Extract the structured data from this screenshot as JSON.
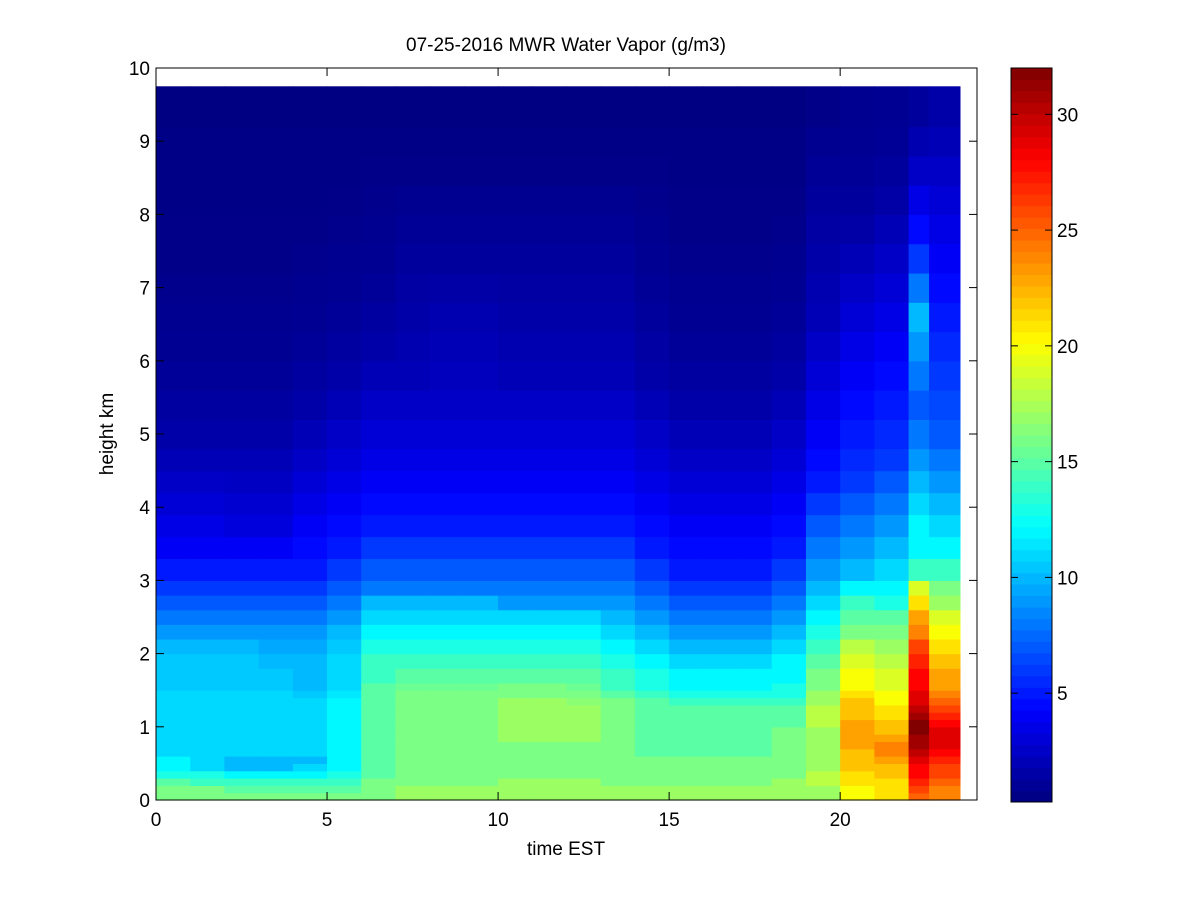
{
  "chart_data": {
    "type": "heatmap",
    "title": "07-25-2016 MWR Water Vapor (g/m3)",
    "xlabel": "time EST",
    "ylabel": "height km",
    "xlim": [
      0,
      24
    ],
    "ylim": [
      0,
      10
    ],
    "x_ticks": [
      0,
      5,
      10,
      15,
      20
    ],
    "y_ticks": [
      0,
      1,
      2,
      3,
      4,
      5,
      6,
      7,
      8,
      9,
      10
    ],
    "colorbar": {
      "colormap": "jet",
      "range": [
        0.3,
        32
      ],
      "ticks": [
        5,
        10,
        15,
        20,
        25,
        30
      ]
    },
    "time_hours": [
      0.5,
      1.5,
      2.5,
      3.5,
      4.5,
      5.5,
      6.5,
      7.5,
      8.5,
      9.5,
      10.5,
      11.5,
      12.5,
      13.5,
      14.5,
      15.5,
      16.5,
      17.5,
      18.5,
      19.5,
      20.5,
      21.5,
      22.5,
      23.0
    ],
    "height_km": [
      0,
      0.1,
      0.2,
      0.3,
      0.4,
      0.5,
      0.6,
      0.7,
      0.8,
      0.9,
      1.0,
      1.1,
      1.2,
      1.3,
      1.4,
      1.5,
      1.6,
      1.8,
      2.0,
      2.2,
      2.4,
      2.6,
      2.8,
      3.0,
      3.3,
      3.6,
      3.9,
      4.2,
      4.5,
      4.8,
      5.2,
      5.6,
      6.0,
      6.4,
      6.8,
      7.2,
      7.6,
      8.0,
      8.4,
      8.8,
      9.2,
      9.75
    ],
    "value_profiles": [
      {
        "time_hours": 0.5,
        "values_g_m3": [
          16,
          16,
          15,
          13,
          12,
          12,
          11,
          11,
          11,
          11,
          11,
          11,
          11,
          11,
          11,
          10.5,
          10.5,
          10.5,
          10,
          9,
          8,
          7,
          6,
          5,
          4,
          3.5,
          3,
          2.5,
          2,
          1.6,
          1.3,
          1.1,
          0.9,
          0.8,
          0.7,
          0.6,
          0.6,
          0.5,
          0.5,
          0.5,
          0.4,
          0.4
        ]
      },
      {
        "time_hours": 1.5,
        "values_g_m3": [
          16,
          16,
          14,
          13,
          11,
          11,
          11,
          11,
          11,
          11,
          11,
          11,
          11,
          11,
          11,
          10.5,
          10.5,
          10.5,
          10,
          9,
          8,
          7,
          6,
          5,
          4,
          3.5,
          3,
          2.5,
          2,
          1.6,
          1.3,
          1.1,
          0.9,
          0.8,
          0.7,
          0.6,
          0.6,
          0.5,
          0.5,
          0.5,
          0.4,
          0.4
        ]
      },
      {
        "time_hours": 2.5,
        "values_g_m3": [
          16,
          15,
          14,
          12,
          10,
          10,
          11,
          11,
          11,
          11,
          11,
          11,
          11,
          11,
          11,
          10.5,
          10.5,
          10.5,
          10,
          9,
          8,
          7,
          6,
          5,
          4,
          3.2,
          2.8,
          2.4,
          2,
          1.6,
          1.3,
          1.1,
          0.9,
          0.8,
          0.7,
          0.6,
          0.6,
          0.5,
          0.5,
          0.5,
          0.4,
          0.4
        ]
      },
      {
        "time_hours": 3.5,
        "values_g_m3": [
          16,
          15,
          14,
          12,
          10,
          10,
          11,
          11,
          11,
          11,
          11,
          11,
          11,
          11,
          11,
          10.5,
          10.5,
          10,
          9.5,
          9,
          8,
          7,
          6,
          5,
          4,
          3.2,
          2.8,
          2.4,
          2,
          1.6,
          1.3,
          1.1,
          0.9,
          0.8,
          0.7,
          0.6,
          0.6,
          0.5,
          0.5,
          0.5,
          0.4,
          0.4
        ]
      },
      {
        "time_hours": 4.5,
        "values_g_m3": [
          16,
          15,
          14,
          12,
          11,
          10,
          11,
          11,
          11,
          11,
          11,
          11,
          11,
          11,
          10.5,
          10,
          10,
          10,
          9.5,
          9,
          8,
          7,
          6,
          5,
          4.5,
          4,
          3.5,
          3,
          2.5,
          2,
          1.6,
          1.3,
          1.1,
          0.9,
          0.8,
          0.7,
          0.6,
          0.5,
          0.5,
          0.5,
          0.4,
          0.4
        ]
      },
      {
        "time_hours": 5.5,
        "values_g_m3": [
          16,
          15,
          14,
          13,
          12,
          12,
          12,
          12,
          12,
          12,
          12,
          12,
          12,
          12,
          11.5,
          11,
          11,
          11,
          10.5,
          10,
          9,
          8,
          7,
          6,
          5,
          4.5,
          4,
          3.5,
          3,
          2.5,
          2,
          1.6,
          1.3,
          1.1,
          0.9,
          0.8,
          0.7,
          0.6,
          0.5,
          0.5,
          0.4,
          0.4
        ]
      },
      {
        "time_hours": 6.5,
        "values_g_m3": [
          16,
          16,
          16,
          15,
          15,
          15,
          15,
          15,
          15,
          15,
          15,
          15,
          15,
          15,
          15,
          15,
          14,
          14,
          13,
          12,
          11,
          10,
          8,
          7,
          6,
          5,
          4.5,
          4,
          3.5,
          3,
          2.5,
          2,
          1.6,
          1.3,
          1.1,
          0.9,
          0.8,
          0.7,
          0.6,
          0.5,
          0.4,
          0.4
        ]
      },
      {
        "time_hours": 7.5,
        "values_g_m3": [
          17,
          17,
          16,
          16,
          16,
          16,
          16,
          16,
          16,
          16,
          16,
          16,
          16,
          16,
          16,
          15.5,
          15,
          14,
          13,
          12,
          11,
          10,
          8,
          7,
          6,
          5,
          4.5,
          4,
          3.5,
          3,
          2.5,
          2,
          1.8,
          1.6,
          1.4,
          1.2,
          1,
          0.8,
          0.6,
          0.5,
          0.4,
          0.4
        ]
      },
      {
        "time_hours": 8.5,
        "values_g_m3": [
          17,
          17,
          16,
          16,
          16,
          16,
          16,
          16,
          16,
          16,
          16,
          16,
          16,
          16,
          16,
          15.5,
          15,
          14,
          13,
          12,
          11,
          10,
          8,
          7,
          6,
          5,
          4.5,
          4,
          3.5,
          3,
          2.5,
          2.2,
          2,
          1.8,
          1.5,
          1.2,
          1,
          0.8,
          0.6,
          0.5,
          0.4,
          0.4
        ]
      },
      {
        "time_hours": 9.5,
        "values_g_m3": [
          17,
          17,
          16,
          16,
          16,
          16,
          16,
          16,
          16,
          16,
          16,
          16,
          16,
          16,
          16,
          15.5,
          15,
          14,
          13,
          12,
          11,
          10,
          8,
          7,
          6,
          5,
          4.5,
          4,
          3.5,
          3,
          2.5,
          2.2,
          2,
          1.8,
          1.5,
          1.2,
          1,
          0.8,
          0.6,
          0.5,
          0.4,
          0.4
        ]
      },
      {
        "time_hours": 10.5,
        "values_g_m3": [
          17,
          17,
          17,
          16,
          16,
          16,
          16,
          16,
          17,
          17,
          17,
          17,
          17,
          17,
          16,
          16,
          15,
          14,
          13,
          12,
          11,
          9,
          8,
          7,
          6,
          5,
          4.5,
          4,
          3.5,
          3,
          2.5,
          2,
          1.8,
          1.6,
          1.4,
          1.2,
          1,
          0.8,
          0.6,
          0.5,
          0.4,
          0.4
        ]
      },
      {
        "time_hours": 11.5,
        "values_g_m3": [
          17,
          17,
          17,
          16,
          16,
          16,
          16,
          16,
          17,
          17,
          17,
          17,
          17,
          17,
          16,
          16,
          15,
          14,
          13,
          12,
          11,
          9,
          8,
          7,
          6,
          5,
          4.5,
          4,
          3.5,
          3,
          2.5,
          2,
          1.8,
          1.6,
          1.4,
          1.2,
          1,
          0.8,
          0.6,
          0.5,
          0.4,
          0.4
        ]
      },
      {
        "time_hours": 12.5,
        "values_g_m3": [
          17,
          17,
          17,
          16,
          16,
          16,
          16,
          16,
          17,
          17,
          17,
          17,
          17,
          16.5,
          16,
          15.5,
          15,
          14,
          13,
          12,
          11,
          9,
          8,
          7,
          6,
          5,
          4.5,
          4,
          3.5,
          3,
          2.5,
          2,
          1.8,
          1.6,
          1.4,
          1.2,
          1,
          0.8,
          0.6,
          0.5,
          0.4,
          0.4
        ]
      },
      {
        "time_hours": 13.5,
        "values_g_m3": [
          17,
          17,
          16,
          16,
          16,
          16,
          16,
          16,
          16,
          16,
          16,
          16,
          16,
          16,
          15,
          14,
          14,
          13,
          12,
          11,
          10,
          9,
          8,
          7,
          6,
          5,
          4.5,
          4,
          3.5,
          3,
          2.5,
          2,
          1.8,
          1.6,
          1.4,
          1.2,
          1,
          0.8,
          0.6,
          0.5,
          0.4,
          0.4
        ]
      },
      {
        "time_hours": 14.5,
        "values_g_m3": [
          17,
          17,
          16,
          16,
          16,
          16,
          15,
          15,
          15,
          15,
          15,
          15,
          15,
          15,
          14,
          13,
          13,
          12,
          11,
          10,
          9,
          8,
          7,
          6,
          5,
          4.5,
          4,
          3.5,
          3,
          2.5,
          2,
          1.6,
          1.4,
          1.2,
          1,
          0.9,
          0.8,
          0.7,
          0.6,
          0.5,
          0.4,
          0.4
        ]
      },
      {
        "time_hours": 15.5,
        "values_g_m3": [
          17,
          17,
          16,
          16,
          16,
          16,
          15,
          15,
          15,
          15,
          15,
          15,
          15,
          14,
          13,
          12,
          12,
          11,
          10,
          9,
          8,
          7,
          6,
          5,
          4.5,
          4,
          3.5,
          3,
          2.5,
          2,
          1.6,
          1.3,
          1.1,
          0.9,
          0.8,
          0.7,
          0.6,
          0.6,
          0.5,
          0.5,
          0.4,
          0.4
        ]
      },
      {
        "time_hours": 16.5,
        "values_g_m3": [
          17,
          17,
          16,
          16,
          16,
          16,
          15,
          15,
          15,
          15,
          15,
          15,
          15,
          14,
          13,
          12,
          12,
          11,
          10,
          9,
          8,
          7,
          6,
          5,
          4.5,
          4,
          3.5,
          3,
          2.5,
          2,
          1.6,
          1.3,
          1.1,
          0.9,
          0.8,
          0.7,
          0.6,
          0.6,
          0.5,
          0.5,
          0.4,
          0.4
        ]
      },
      {
        "time_hours": 17.5,
        "values_g_m3": [
          17,
          17,
          16,
          16,
          16,
          16,
          15,
          15,
          15,
          15,
          15,
          15,
          15,
          14,
          13,
          12,
          12,
          11,
          10,
          9,
          8,
          7,
          6,
          5,
          4.5,
          4,
          3.5,
          3,
          2.5,
          2,
          1.6,
          1.3,
          1.1,
          0.9,
          0.8,
          0.7,
          0.6,
          0.6,
          0.5,
          0.5,
          0.4,
          0.4
        ]
      },
      {
        "time_hours": 18.5,
        "values_g_m3": [
          17,
          17,
          17,
          16,
          16,
          16,
          16,
          16,
          16,
          16,
          15,
          15,
          15,
          14,
          13,
          13,
          12,
          12,
          11,
          10,
          9,
          8,
          7,
          6,
          5,
          4.5,
          4,
          3.5,
          3,
          2.5,
          2,
          1.6,
          1.3,
          1.1,
          0.9,
          0.8,
          0.7,
          0.6,
          0.5,
          0.5,
          0.4,
          0.4
        ]
      },
      {
        "time_hours": 19.5,
        "values_g_m3": [
          17,
          17,
          18,
          18,
          17,
          17,
          17,
          17,
          17,
          17,
          18,
          18,
          18,
          17,
          17,
          16,
          16,
          15,
          14,
          13,
          12,
          11,
          10,
          9,
          8,
          7,
          6,
          5,
          4.5,
          4,
          3.5,
          3,
          2.5,
          2,
          1.8,
          1.6,
          1.4,
          1.2,
          1,
          0.8,
          0.6,
          0.5
        ]
      },
      {
        "time_hours": 20.5,
        "values_g_m3": [
          20,
          20,
          21,
          21,
          22,
          22,
          22,
          23,
          23,
          23,
          23,
          22,
          22,
          22,
          21,
          20,
          20,
          19,
          18,
          16,
          15,
          14,
          12,
          10,
          9,
          8,
          7,
          6,
          5.5,
          5,
          4.5,
          4,
          3.5,
          3,
          2.5,
          2,
          1.5,
          1.2,
          1,
          0.9,
          0.8,
          0.7
        ]
      },
      {
        "time_hours": 21.5,
        "values_g_m3": [
          21,
          21,
          21,
          22,
          22,
          23,
          24,
          24,
          23,
          22,
          22,
          21,
          21,
          20,
          20,
          19,
          19,
          18,
          17,
          16,
          15,
          13,
          12,
          11,
          10,
          9,
          8,
          7,
          6,
          5.5,
          5,
          4.5,
          4,
          3.5,
          3,
          2.5,
          2,
          1.5,
          1.2,
          1,
          0.9,
          0.8
        ]
      },
      {
        "time_hours": 22.5,
        "values_g_m3": [
          25,
          26,
          27,
          28,
          28,
          29,
          30,
          31,
          31,
          32,
          32,
          31,
          30,
          29,
          29,
          28,
          28,
          27,
          26,
          24,
          23,
          21,
          19,
          14,
          12,
          12,
          11,
          10,
          9,
          8,
          7,
          8,
          9,
          10,
          8,
          6,
          4.5,
          3.5,
          2.5,
          1.8,
          1.2,
          1
        ]
      },
      {
        "time_hours": 23.0,
        "values_g_m3": [
          24,
          24,
          25,
          26,
          26,
          27,
          28,
          29,
          29,
          29,
          28,
          27,
          26,
          25,
          24,
          23,
          23,
          22,
          21,
          20,
          19,
          17,
          16,
          14,
          12,
          11,
          10,
          9,
          8,
          7,
          6.5,
          6,
          5.5,
          5,
          4.5,
          4,
          3.5,
          3,
          2.5,
          2,
          1.6,
          1.2
        ]
      }
    ]
  }
}
